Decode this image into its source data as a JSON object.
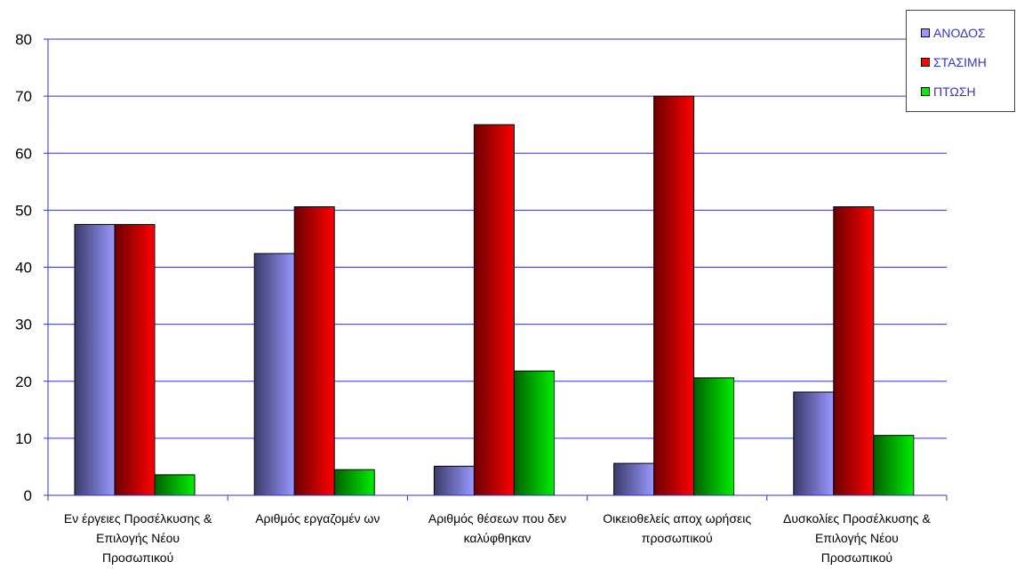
{
  "chart_data": {
    "type": "bar",
    "title": "",
    "xlabel": "",
    "ylabel": "",
    "ylim": [
      0,
      80
    ],
    "yticks": [
      0,
      10,
      20,
      30,
      40,
      50,
      60,
      70,
      80
    ],
    "grid": true,
    "legend_position": "top-right",
    "categories": [
      [
        "Εν έργειες Προσέλκυσης &",
        "Επιλογής Νέου",
        "Προσωπικού"
      ],
      [
        "Αριθμός εργαζομέν ων"
      ],
      [
        "Αριθμός θέσεων  που δεν",
        "καλύφθηκαν"
      ],
      [
        "Οικειοθελείς αποχ ωρήσεις",
        "προσωπικού"
      ],
      [
        "Δυσκολίες Προσέλκυσης &",
        "Επιλογής Νέου",
        "Προσωπικού"
      ]
    ],
    "series": [
      {
        "name": "ΑΝΟΔΟΣ",
        "color": "#9999ff",
        "values": [
          47.5,
          42.4,
          5.1,
          5.6,
          18.1
        ]
      },
      {
        "name": "ΣΤΑΣΙΜΗ",
        "color": "#ff0000",
        "values": [
          47.5,
          50.6,
          65.0,
          70.0,
          50.6
        ]
      },
      {
        "name": "ΠΤΩΣΗ",
        "color": "#00ee00",
        "values": [
          3.6,
          4.5,
          21.8,
          20.6,
          10.5
        ]
      }
    ]
  }
}
